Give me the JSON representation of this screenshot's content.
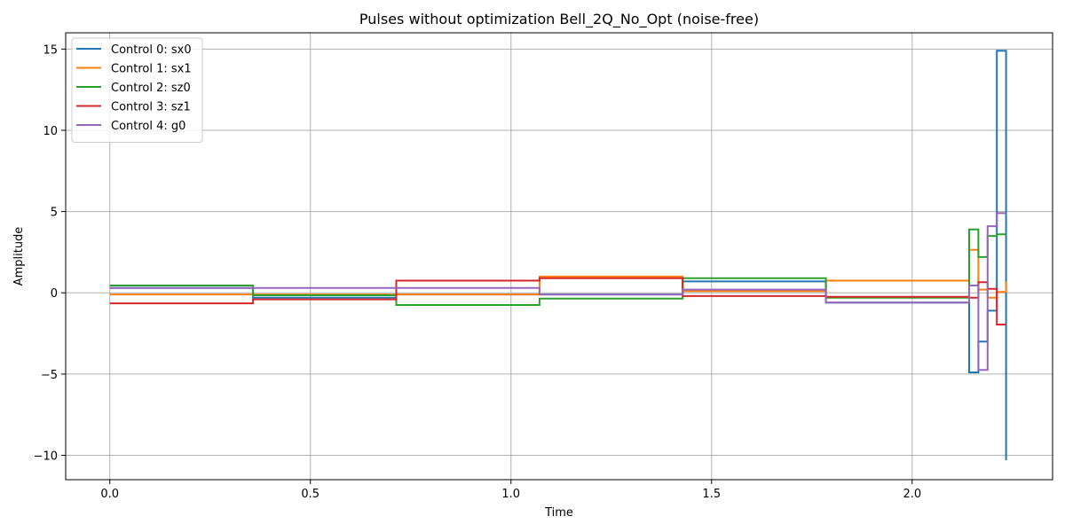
{
  "chart_data": {
    "type": "line",
    "step": true,
    "title": "Pulses without optimization Bell_2Q_No_Opt (noise-free)",
    "xlabel": "Time",
    "ylabel": "Amplitude",
    "xlim": [
      -0.11,
      2.35
    ],
    "ylim": [
      -11.5,
      16.0
    ],
    "xticks": [
      0.0,
      0.5,
      1.0,
      1.5,
      2.0
    ],
    "xtick_labels": [
      "0.0",
      "0.5",
      "1.0",
      "1.5",
      "2.0"
    ],
    "yticks": [
      -10,
      -5,
      0,
      5,
      10,
      15
    ],
    "ytick_labels": [
      "−10",
      "−5",
      "0",
      "5",
      "10",
      "15"
    ],
    "grid": true,
    "legend_position": "upper-left",
    "x_edges": [
      0.0,
      0.357,
      0.714,
      1.071,
      1.428,
      1.785,
      2.142,
      2.165,
      2.188,
      2.211,
      2.234
    ],
    "series": [
      {
        "name": "Control 0: sx0",
        "color": "#1f77b4",
        "values": [
          0.3,
          -0.3,
          -0.1,
          -0.1,
          0.7,
          -0.6,
          -4.9,
          -3.0,
          -1.1,
          14.9
        ],
        "end_value": -10.3
      },
      {
        "name": "Control 1: sx1",
        "color": "#ff7f0e",
        "values": [
          -0.1,
          -0.1,
          -0.1,
          1.0,
          0.1,
          0.75,
          2.65,
          0.2,
          -0.3,
          0.05
        ],
        "end_value": 0.7
      },
      {
        "name": "Control 2: sz0",
        "color": "#2ca02c",
        "values": [
          0.45,
          -0.15,
          -0.75,
          -0.35,
          0.9,
          -0.3,
          3.9,
          2.2,
          3.5,
          3.6
        ],
        "end_value": 3.6
      },
      {
        "name": "Control 3: sz1",
        "color": "#d62728",
        "values": [
          -0.65,
          -0.4,
          0.75,
          0.9,
          -0.2,
          -0.25,
          -0.3,
          0.65,
          0.25,
          -1.95
        ],
        "end_value": -1.95
      },
      {
        "name": "Control 4: g0",
        "color": "#9467bd",
        "values": [
          0.3,
          0.3,
          0.3,
          -0.1,
          0.2,
          -0.6,
          0.45,
          -4.75,
          4.1,
          4.9
        ],
        "end_value": 4.9
      }
    ]
  }
}
